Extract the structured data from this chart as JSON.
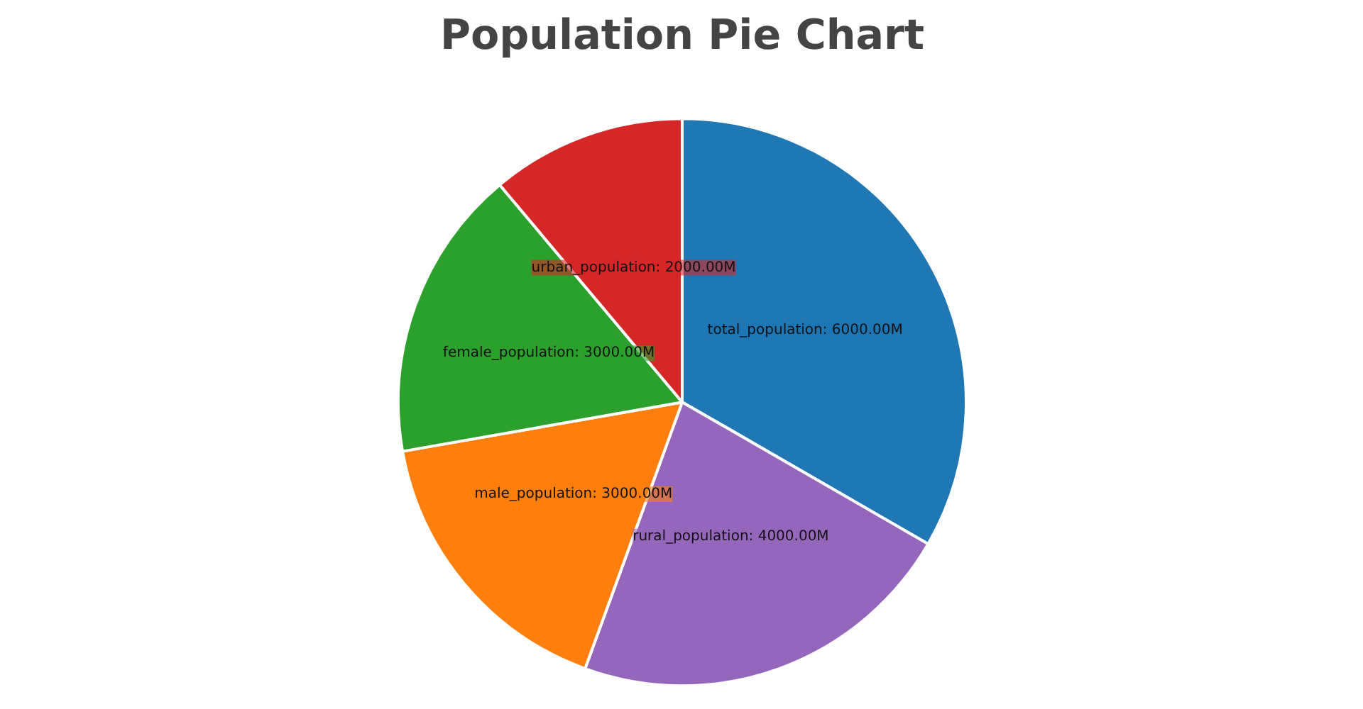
{
  "chart_data": {
    "type": "pie",
    "title": "Population Pie Chart",
    "categories": [
      "total_population",
      "rural_population",
      "male_population",
      "female_population",
      "urban_population"
    ],
    "values": [
      6000,
      4000,
      3000,
      3000,
      2000
    ],
    "value_labels": [
      "6000.00M",
      "4000.00M",
      "3000.00M",
      "3000.00M",
      "2000.00M"
    ],
    "colors": [
      "#1f77b4",
      "#9467bd",
      "#ff7f0e",
      "#2ca02c",
      "#d62728"
    ],
    "legend": false
  }
}
